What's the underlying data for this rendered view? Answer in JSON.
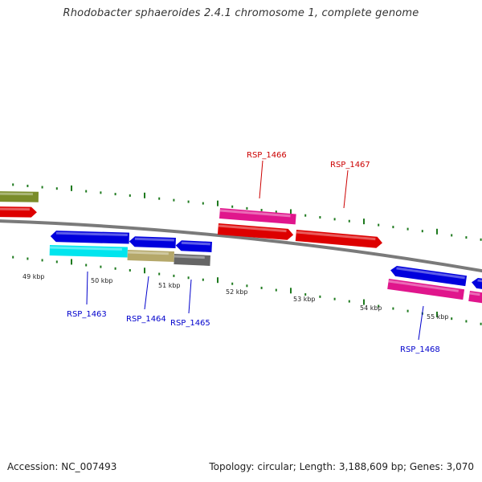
{
  "title": "Rhodobacter sphaeroides 2.4.1 chromosome 1, complete genome",
  "footer": {
    "accession": "Accession: NC_007493",
    "summary": "Topology: circular; Length: 3,188,609 bp; Genes: 3,070"
  },
  "colors": {
    "backbone": "#7a7a7a",
    "tick": "#1e7a1e",
    "label_forward": "#cc0000",
    "label_reverse": "#0000cc"
  },
  "scale_labels": [
    "49 kbp",
    "50 kbp",
    "51 kbp",
    "52 kbp",
    "53 kbp",
    "54 kbp",
    "55 kbp"
  ],
  "features": [
    {
      "name": "olive-gene-block",
      "color": "#7a8c2a",
      "strand": "forward"
    },
    {
      "name": "red-gene-arrow-left",
      "color": "#dd0000",
      "strand": "forward"
    },
    {
      "name": "pink-gene-block-1466",
      "color": "#e0168c",
      "strand": "forward"
    },
    {
      "name": "red-gene-arrow-1466",
      "color": "#dd0000",
      "strand": "forward"
    },
    {
      "name": "red-gene-arrow-1467",
      "color": "#dd0000",
      "strand": "forward"
    },
    {
      "name": "blue-gene-arrow-1463",
      "color": "#0000dd",
      "strand": "reverse"
    },
    {
      "name": "blue-gene-arrow-1464",
      "color": "#0000dd",
      "strand": "reverse"
    },
    {
      "name": "blue-gene-arrow-1465",
      "color": "#0000dd",
      "strand": "reverse"
    },
    {
      "name": "cyan-gene-block-1463",
      "color": "#00e5ee",
      "strand": "reverse"
    },
    {
      "name": "tan-gene-block-1464",
      "color": "#b5a86a",
      "strand": "reverse"
    },
    {
      "name": "gray-gene-block-1465",
      "color": "#666666",
      "strand": "reverse"
    },
    {
      "name": "blue-gene-arrow-1468",
      "color": "#0000dd",
      "strand": "reverse"
    },
    {
      "name": "pink-gene-block-1468",
      "color": "#e0168c",
      "strand": "reverse"
    },
    {
      "name": "blue-gene-arrow-right",
      "color": "#0000dd",
      "strand": "reverse"
    },
    {
      "name": "pink-gene-block-right",
      "color": "#e0168c",
      "strand": "reverse"
    }
  ],
  "gene_labels": [
    {
      "text": "RSP_1466",
      "strand": "forward"
    },
    {
      "text": "RSP_1467",
      "strand": "forward"
    },
    {
      "text": "RSP_1463",
      "strand": "reverse"
    },
    {
      "text": "RSP_1464",
      "strand": "reverse"
    },
    {
      "text": "RSP_1465",
      "strand": "reverse"
    },
    {
      "text": "RSP_1468",
      "strand": "reverse"
    }
  ]
}
